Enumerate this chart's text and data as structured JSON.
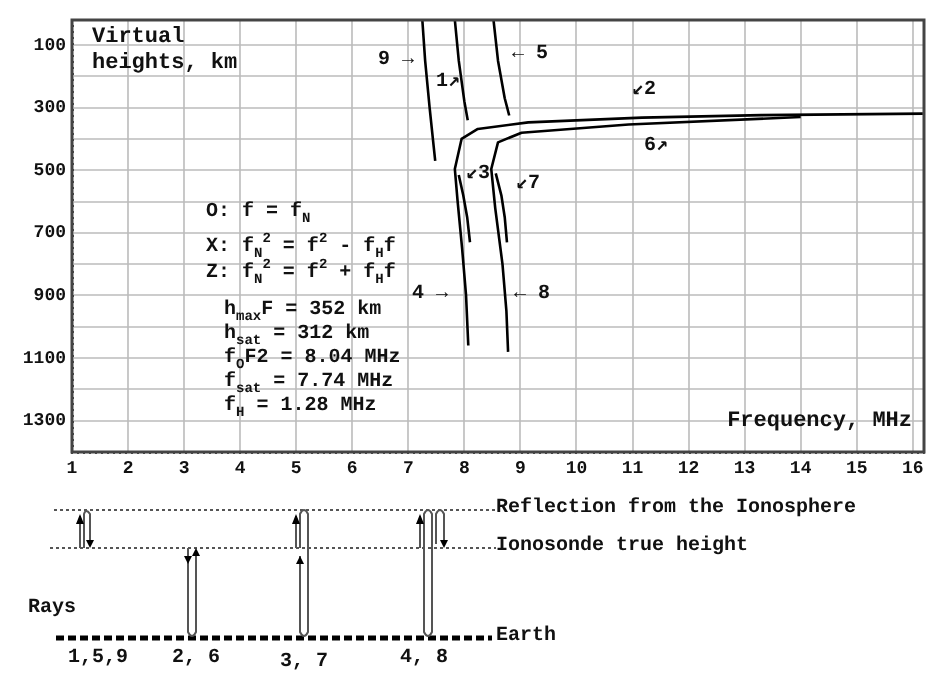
{
  "chart_data": {
    "type": "line",
    "xlabel": "Frequency, MHz",
    "ylabel": "Virtual heights, km",
    "xlim": [
      1,
      16.2
    ],
    "ylim": [
      1400,
      20
    ],
    "xticks": [
      1,
      2,
      3,
      4,
      5,
      6,
      7,
      8,
      9,
      10,
      11,
      12,
      13,
      14,
      15,
      16
    ],
    "yticks": [
      100,
      {
        "value": 200,
        "label": null
      },
      300,
      {
        "value": 400,
        "label": null
      },
      500,
      {
        "value": 600,
        "label": null
      },
      700,
      {
        "value": 800,
        "label": null
      },
      900,
      {
        "value": 1000,
        "label": null
      },
      1100,
      {
        "value": 1200,
        "label": null
      },
      1300
    ],
    "grid": true,
    "legend": false,
    "marker": "none",
    "series": [
      {
        "color": "#000000",
        "x": [
          7.25,
          7.3,
          7.38,
          7.45,
          7.48
        ],
        "values": [
          20,
          150,
          300,
          420,
          470
        ]
      },
      {
        "color": "#000000",
        "x": [
          7.83,
          7.9,
          8.0,
          8.06
        ],
        "values": [
          20,
          150,
          280,
          340
        ]
      },
      {
        "color": "#000000",
        "x": [
          8.52,
          8.6,
          8.72,
          8.8
        ],
        "values": [
          20,
          150,
          270,
          325
        ]
      },
      {
        "color": "#000000",
        "x": [
          16.18,
          13.3,
          11.17,
          9.14,
          8.24,
          7.95,
          7.83,
          7.88,
          7.96,
          8.03,
          8.07
        ],
        "values": [
          319,
          324,
          332,
          347,
          368,
          400,
          496,
          600,
          750,
          900,
          1060
        ]
      },
      {
        "color": "#000000",
        "x": [
          7.9,
          7.98,
          8.05,
          8.1
        ],
        "values": [
          515,
          580,
          650,
          730
        ]
      },
      {
        "color": "#000000",
        "x": [
          14,
          10.93,
          9.02,
          8.6,
          8.48,
          8.55,
          8.68,
          8.75,
          8.78
        ],
        "values": [
          330,
          354,
          380,
          411,
          496,
          620,
          800,
          950,
          1080
        ]
      },
      {
        "color": "#000000",
        "x": [
          8.56,
          8.66,
          8.72,
          8.76
        ],
        "values": [
          510,
          580,
          650,
          730
        ]
      }
    ],
    "annotations": [
      "9 →",
      "1↗",
      "← 5",
      "↙2",
      "6↗",
      "↙3",
      "↙7",
      "4 →",
      "← 8",
      "O: f = f$_{N}$",
      "X: f$_{N}$$^{2}$ = f$^{2}$ - f$_{H}$f",
      "Z: f$_{N}$$^{2}$ = f$^{2}$ + f$_{H}$f",
      "h$_{max}$F = 352 km",
      "h$_{sat}$ = 312 km",
      "f$_{O}$F2 = 8.04 MHz",
      "f$_{sat}$ = 7.74 MHz",
      "f$_{H}$ = 1.28 MHz",
      "Reflection from the Ionosphere",
      "Ionosonde true height",
      "Rays",
      "Earth",
      "1,5,9",
      "2, 6",
      "3, 7",
      "4, 8"
    ]
  }
}
